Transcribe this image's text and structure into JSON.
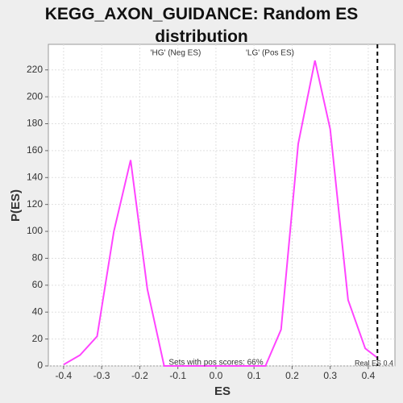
{
  "chart_data": {
    "type": "line",
    "title": "KEGG_AXON_GUIDANCE: Random ES distribution",
    "xlabel": "ES",
    "ylabel": "P(ES)",
    "series": [
      {
        "color": "#ff44ff",
        "x": [
          -0.4,
          -0.357,
          -0.312,
          -0.268,
          -0.224,
          -0.18,
          -0.136,
          -0.092,
          -0.048,
          -0.004,
          0.04,
          0.084,
          0.13,
          0.171,
          0.216,
          0.26,
          0.3,
          0.347,
          0.392,
          0.424
        ],
        "values": [
          1,
          8,
          22,
          100,
          153,
          57,
          0,
          0,
          0,
          0,
          0,
          0,
          0,
          27,
          165,
          227,
          176,
          49,
          13,
          6
        ]
      }
    ],
    "xlim": [
      -0.44,
      0.47
    ],
    "ylim": [
      0,
      239
    ],
    "xticks": [
      -0.4,
      -0.3,
      -0.2,
      -0.1,
      {
        "value": 0,
        "label": "0.0"
      },
      0.1,
      0.2,
      0.3,
      0.4
    ],
    "yticks": [
      0,
      20,
      40,
      60,
      80,
      100,
      120,
      140,
      160,
      180,
      200,
      220
    ],
    "grid": true,
    "annotations": [
      {
        "text": "'HG' (Neg ES)",
        "color": "#2222ee"
      },
      {
        "text": "'LG' (Pos ES)",
        "color": "#ee2222"
      },
      {
        "text": "Sets with pos scores: 66%",
        "color": "#333333"
      }
    ],
    "reference_line": {
      "x": 0.424,
      "label": "Real ES 0.4"
    }
  }
}
